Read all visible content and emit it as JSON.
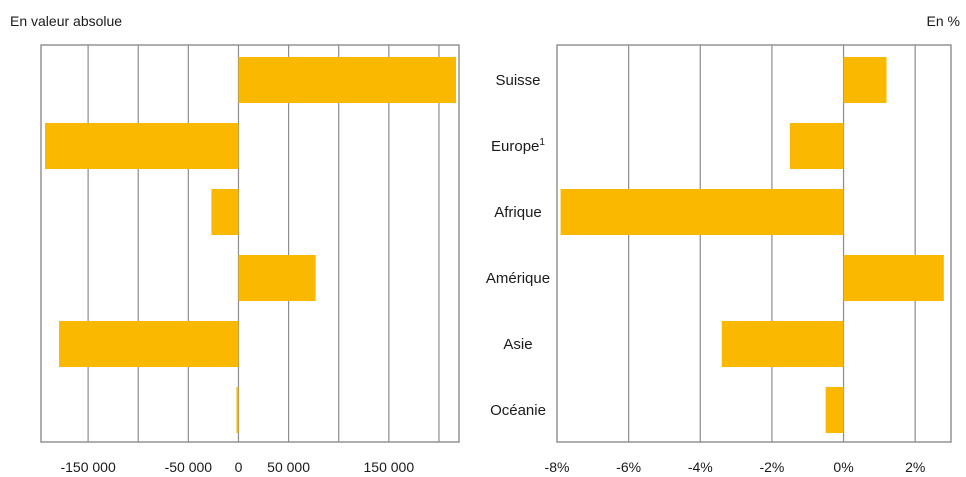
{
  "left_caption": "En valeur absolue",
  "right_caption": "En %",
  "colors": {
    "bar": "#fbb800",
    "grid": "#8c8c8c",
    "frame": "#8c8c8c"
  },
  "chart_data": [
    {
      "type": "bar",
      "orientation": "horizontal",
      "title": "En valeur absolue",
      "categories": [
        "Suisse",
        "Europe¹",
        "Afrique",
        "Amérique",
        "Asie",
        "Océanie"
      ],
      "values": [
        217000,
        -193000,
        -27000,
        77000,
        -179000,
        -2000
      ],
      "xlim": [
        -197000,
        220000
      ],
      "xticks": [
        -150000,
        -50000,
        0,
        50000,
        150000
      ],
      "xtick_labels": [
        "-150 000",
        "-50 000",
        "0",
        "50 000",
        "150 000"
      ],
      "grid_step": 50000,
      "grid": true
    },
    {
      "type": "bar",
      "orientation": "horizontal",
      "title": "En %",
      "categories": [
        "Suisse",
        "Europe¹",
        "Afrique",
        "Amérique",
        "Asie",
        "Océanie"
      ],
      "values": [
        1.2,
        -1.5,
        -7.9,
        2.8,
        -3.4,
        -0.5
      ],
      "xlim": [
        -8,
        3
      ],
      "xticks": [
        -8,
        -6,
        -4,
        -2,
        0,
        2
      ],
      "xtick_labels": [
        "-8%",
        "-6%",
        "-4%",
        "-2%",
        "0%",
        "2%"
      ],
      "grid_step": 2,
      "grid": true
    }
  ]
}
